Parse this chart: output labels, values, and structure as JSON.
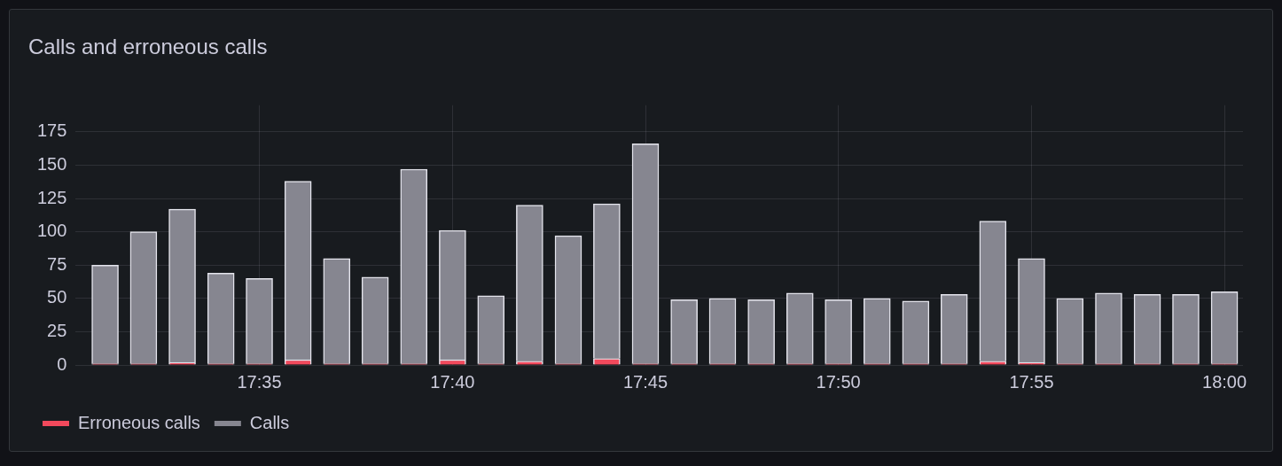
{
  "chart_data": {
    "type": "bar",
    "title": "Calls and erroneous calls",
    "stacked": true,
    "x": [
      17.5167,
      17.5333,
      17.55,
      17.5667,
      17.5833,
      17.6,
      17.6167,
      17.6333,
      17.65,
      17.6667,
      17.6833,
      17.7,
      17.7167,
      17.7333,
      17.75,
      17.7667,
      17.7833,
      17.8,
      17.8167,
      17.8333,
      17.85,
      17.8667,
      17.8833,
      17.9,
      17.9167,
      17.9333,
      17.95,
      17.9667,
      17.9833,
      18
    ],
    "series": [
      {
        "name": "Erroneous calls",
        "color": "#f2495c",
        "values": [
          1,
          1,
          2,
          1,
          1,
          4,
          1,
          1,
          1,
          4,
          1,
          3,
          1,
          5,
          1,
          1,
          1,
          1,
          1,
          1,
          1,
          1,
          1,
          3,
          2,
          1,
          1,
          1,
          1,
          1
        ]
      },
      {
        "name": "Calls",
        "color": "#868690",
        "values": [
          74,
          99,
          115,
          68,
          64,
          134,
          79,
          65,
          146,
          97,
          51,
          117,
          96,
          116,
          165,
          48,
          49,
          48,
          53,
          48,
          49,
          47,
          52,
          105,
          78,
          49,
          53,
          52,
          52,
          54
        ]
      }
    ],
    "xlim": [
      17.504,
      18.008
    ],
    "xticks": [
      {
        "value": 17.5833,
        "label": "17:35"
      },
      {
        "value": 17.6667,
        "label": "17:40"
      },
      {
        "value": 17.75,
        "label": "17:45"
      },
      {
        "value": 17.8333,
        "label": "17:50"
      },
      {
        "value": 17.9167,
        "label": "17:55"
      },
      {
        "value": 18,
        "label": "18:00"
      }
    ],
    "ylim": [
      0,
      195
    ],
    "yticks": [
      0,
      25,
      50,
      75,
      100,
      125,
      150,
      175
    ],
    "grid": true,
    "legend": "bottom left"
  }
}
